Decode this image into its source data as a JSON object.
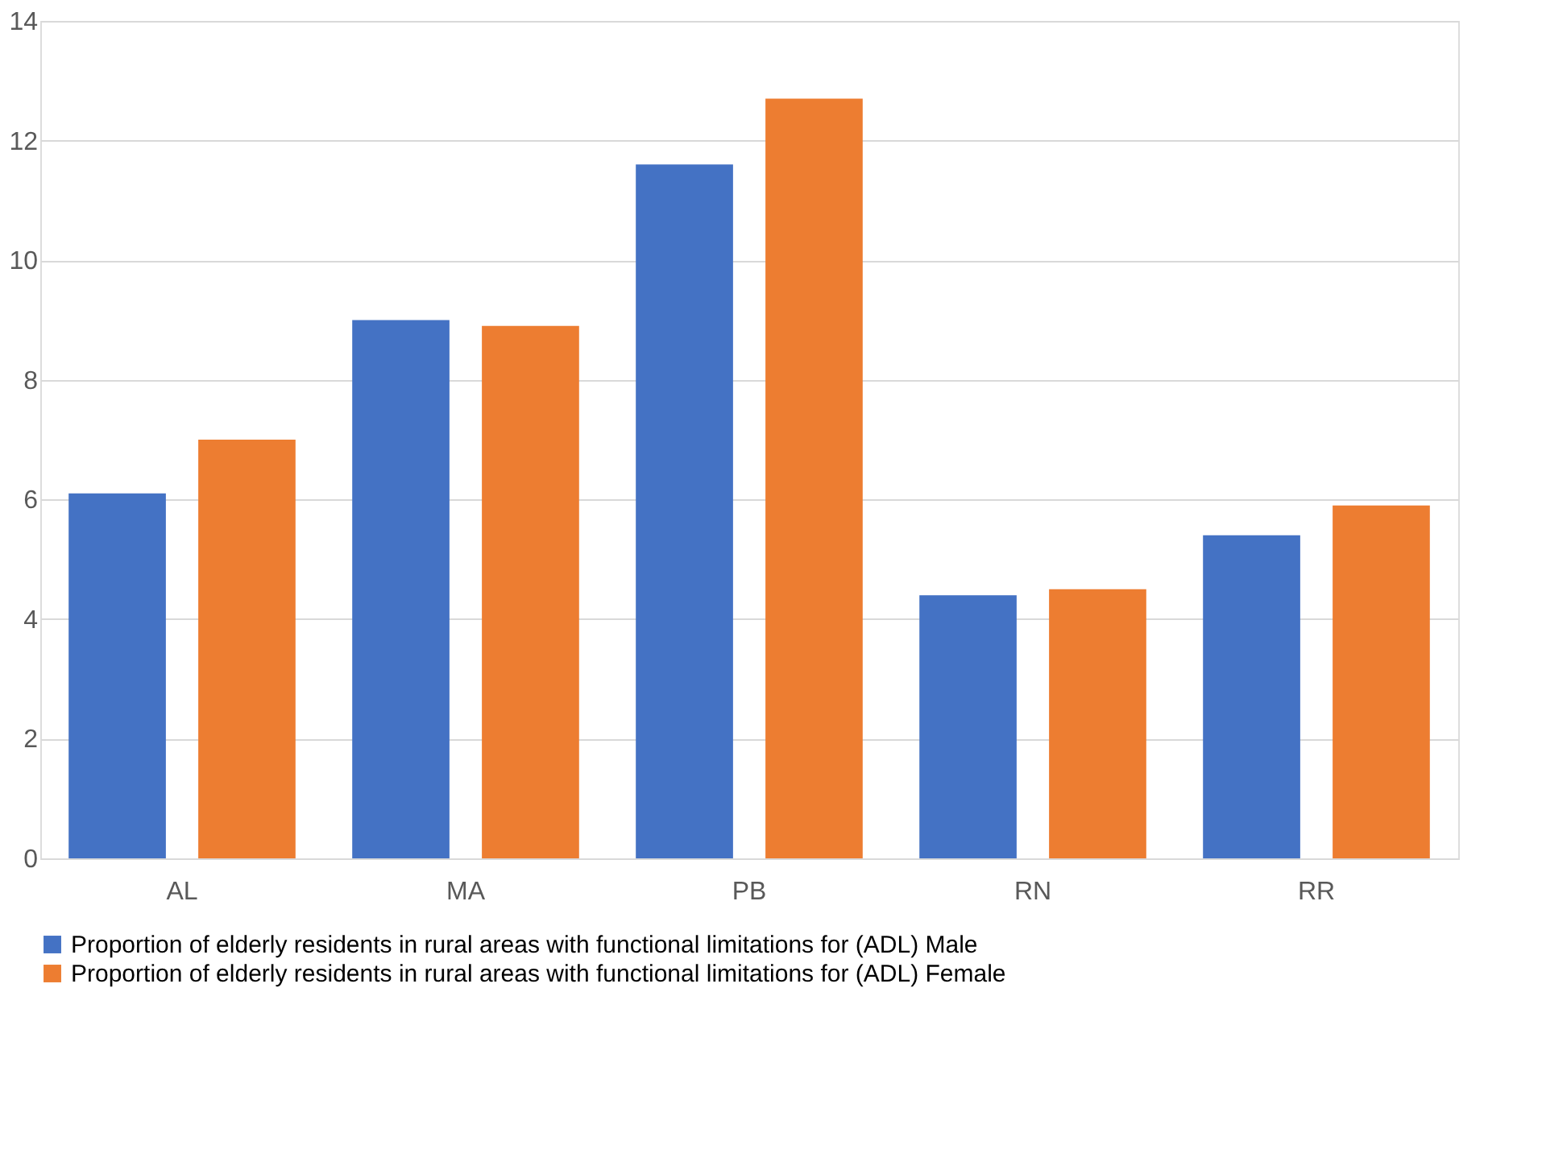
{
  "chart_data": {
    "type": "bar",
    "categories": [
      "AL",
      "MA",
      "PB",
      "RN",
      "RR"
    ],
    "series": [
      {
        "name": "Proportion of elderly residents in rural areas with functional limitations for (ADL) Male",
        "color": "#4472c4",
        "values": [
          6.1,
          9.0,
          11.6,
          4.4,
          5.4
        ]
      },
      {
        "name": "Proportion of elderly residents in rural areas with functional limitations for (ADL) Female",
        "color": "#ed7d31",
        "values": [
          7.0,
          8.9,
          12.7,
          4.5,
          5.9
        ]
      }
    ],
    "ylim": [
      0,
      14
    ],
    "yticks": [
      0,
      2,
      4,
      6,
      8,
      10,
      12,
      14
    ],
    "grid": "y",
    "legend": "bottom"
  }
}
